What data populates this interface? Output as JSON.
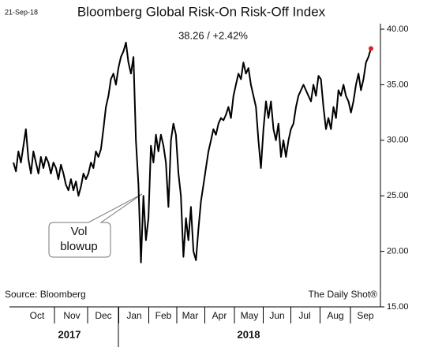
{
  "chart_data": {
    "type": "line",
    "date": "21-Sep-18",
    "title": "Bloomberg Global Risk-On Risk-Off Index",
    "subtitle": "38.26  /  +2.42%",
    "source": "Source: Bloomberg",
    "credit": "The Daily Shot®",
    "annotation": [
      "Vol",
      "blowup"
    ],
    "months": [
      "Oct",
      "Nov",
      "Dec",
      "Jan",
      "Feb",
      "Mar",
      "Apr",
      "May",
      "Jun",
      "Jul",
      "Aug",
      "Sep"
    ],
    "years": [
      "2017",
      "2018"
    ],
    "color": "#000000",
    "last_point_color": "#e02020",
    "ylim": [
      15,
      40
    ],
    "yticks": [
      {
        "value": 15,
        "label": "15.00"
      },
      {
        "value": 20,
        "label": "20.00"
      },
      {
        "value": 25,
        "label": "25.00"
      },
      {
        "value": 30,
        "label": "30.00"
      },
      {
        "value": 35,
        "label": "35.00"
      },
      {
        "value": 40,
        "label": "40.00"
      }
    ],
    "values": [
      28,
      27.2,
      29,
      28,
      29.5,
      31,
      28.3,
      27,
      29,
      28,
      27,
      28.5,
      27.5,
      28.5,
      28,
      27,
      28,
      27.5,
      26.5,
      27.8,
      27,
      26,
      25.5,
      26.5,
      25.5,
      26.3,
      25,
      25.8,
      27,
      26.5,
      27,
      28,
      27.5,
      29,
      28.5,
      29.2,
      31,
      33,
      34,
      35.5,
      36,
      35,
      36.5,
      37.5,
      38,
      38.8,
      37,
      36,
      37.5,
      30,
      26,
      19,
      25,
      21,
      23,
      29.5,
      28,
      30.5,
      29,
      30.5,
      29.5,
      28,
      24,
      30,
      31.5,
      30.5,
      27,
      25,
      19.5,
      23,
      21,
      24,
      20,
      19.2,
      22,
      24.5,
      26,
      27.5,
      29,
      30,
      31,
      30.5,
      31.5,
      32,
      31.8,
      32.3,
      33,
      32,
      34,
      35,
      36,
      35.5,
      37,
      36,
      36.5,
      35,
      34,
      33,
      30,
      27.5,
      31,
      33.5,
      32,
      33.5,
      31,
      30,
      31.5,
      28.5,
      30,
      28.5,
      30,
      31,
      31.5,
      33,
      34,
      34.5,
      35,
      34.5,
      34,
      33.5,
      35,
      34,
      35.8,
      35.5,
      33,
      31,
      32,
      31,
      33,
      32,
      34.5,
      34,
      35,
      34,
      33.5,
      32.5,
      33.5,
      35,
      36,
      34.5,
      35.5,
      37,
      37.5,
      38.26
    ]
  }
}
